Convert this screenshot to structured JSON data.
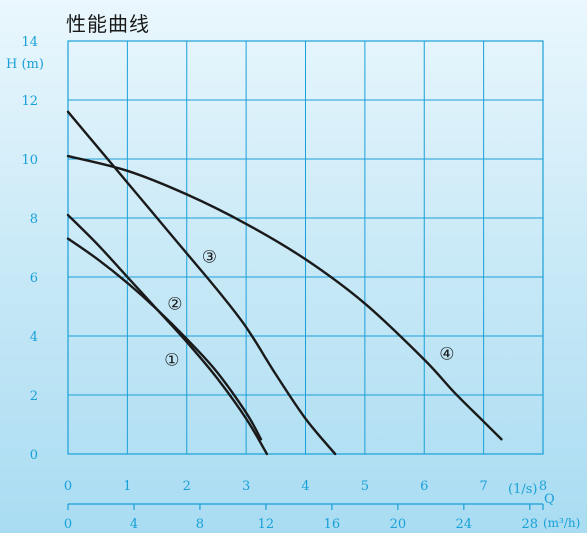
{
  "colors": {
    "axis": "#1aa0d8",
    "grid": "#1aa0d8",
    "curve": "#1a1a1a",
    "background_top": "#eaf7fd",
    "background_bottom": "#a9dcf2"
  },
  "chart_data": {
    "type": "line",
    "title": "性能曲线",
    "ylabel": "H (m)",
    "xlabel": "Q",
    "x_units": [
      "(1/s)",
      "(m³/h)"
    ],
    "xlim": [
      0,
      8
    ],
    "ylim": [
      0,
      14
    ],
    "x_ticks_ls": [
      "0",
      "1",
      "2",
      "3",
      "4",
      "5",
      "6",
      "7",
      "8"
    ],
    "x_ticks_m3h": [
      "0",
      "4",
      "8",
      "12",
      "16",
      "20",
      "24",
      "28"
    ],
    "y_ticks": [
      "0",
      "2",
      "4",
      "6",
      "8",
      "10",
      "12",
      "14"
    ],
    "grid": true,
    "series": [
      {
        "name": "①",
        "x": [
          0,
          0.5,
          1.0,
          1.5,
          2.0,
          2.5,
          3.0,
          3.25
        ],
        "y": [
          7.3,
          6.6,
          5.8,
          4.9,
          3.9,
          2.8,
          1.4,
          0.5
        ]
      },
      {
        "name": "②",
        "x": [
          0,
          0.5,
          1.0,
          1.5,
          2.0,
          2.5,
          3.0,
          3.35
        ],
        "y": [
          8.1,
          7.1,
          6.0,
          4.9,
          3.8,
          2.6,
          1.2,
          0
        ]
      },
      {
        "name": "③",
        "x": [
          0,
          0.5,
          1.0,
          1.5,
          2.0,
          2.5,
          3.0,
          3.5,
          4.0,
          4.5
        ],
        "y": [
          11.6,
          10.4,
          9.2,
          8.0,
          6.8,
          5.6,
          4.3,
          2.7,
          1.2,
          0
        ]
      },
      {
        "name": "④",
        "x": [
          0,
          1,
          2,
          3,
          4,
          5,
          6,
          6.5,
          7,
          7.3
        ],
        "y": [
          10.1,
          9.6,
          8.8,
          7.8,
          6.6,
          5.1,
          3.2,
          2.1,
          1.1,
          0.5
        ]
      }
    ],
    "label_points": [
      {
        "name": "①",
        "x": 1.75,
        "y": 3.2
      },
      {
        "name": "②",
        "x": 1.8,
        "y": 5.1
      },
      {
        "name": "③",
        "x": 2.38,
        "y": 6.7
      },
      {
        "name": "④",
        "x": 6.38,
        "y": 3.4
      }
    ]
  }
}
